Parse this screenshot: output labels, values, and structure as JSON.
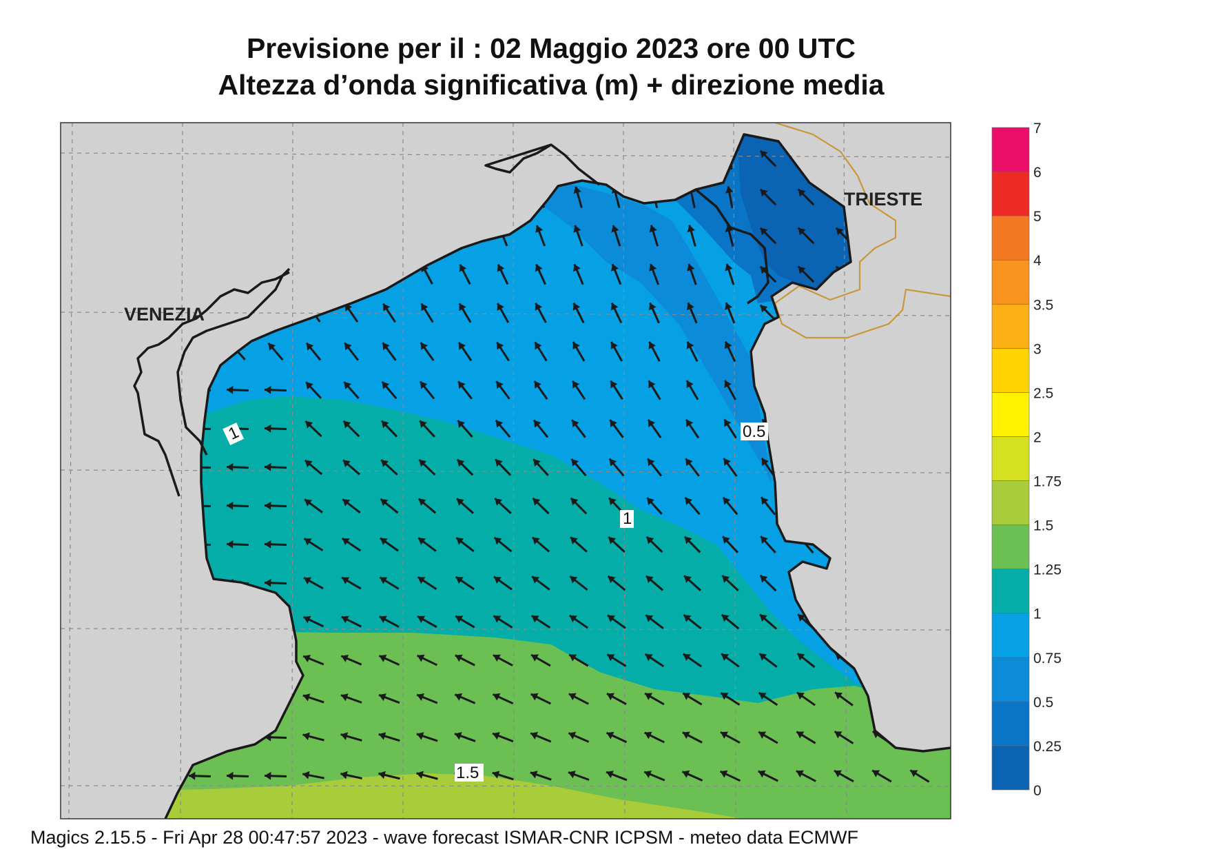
{
  "title": {
    "line1": "Previsione per il  :  02   Maggio  2023   ore 00 UTC",
    "line2": "Altezza d’onda significativa (m) + direzione media"
  },
  "map": {
    "cities": [
      "VENEZIA",
      "TRIESTE"
    ],
    "contour_labels": [
      "0.5",
      "1",
      "1",
      "1.5"
    ],
    "colors": {
      "land": "#d1d1d1",
      "coast": "#1a1a1a",
      "border": "#c8963c",
      "arrow": "#1a1a1a"
    },
    "wave_direction": "toward north-west"
  },
  "legend": {
    "ticks": [
      "0",
      "0.25",
      "0.5",
      "0.75",
      "1",
      "1.25",
      "1.5",
      "1.75",
      "2",
      "2.5",
      "3",
      "3.5",
      "4",
      "5",
      "6",
      "7"
    ],
    "colors": [
      "#0b63b4",
      "#0a75c6",
      "#0b8bd8",
      "#06a0e4",
      "#04ada8",
      "#6cbf52",
      "#a8cc3a",
      "#d5e120",
      "#fff100",
      "#ffd200",
      "#fbb016",
      "#f7931e",
      "#f37a22",
      "#ee2a24",
      "#ec0f6a"
    ]
  },
  "footer": "Magics 2.15.5 - Fri Apr 28 00:47:57 2023 - wave forecast  ISMAR-CNR  ICPSM - meteo data   ECMWF"
}
